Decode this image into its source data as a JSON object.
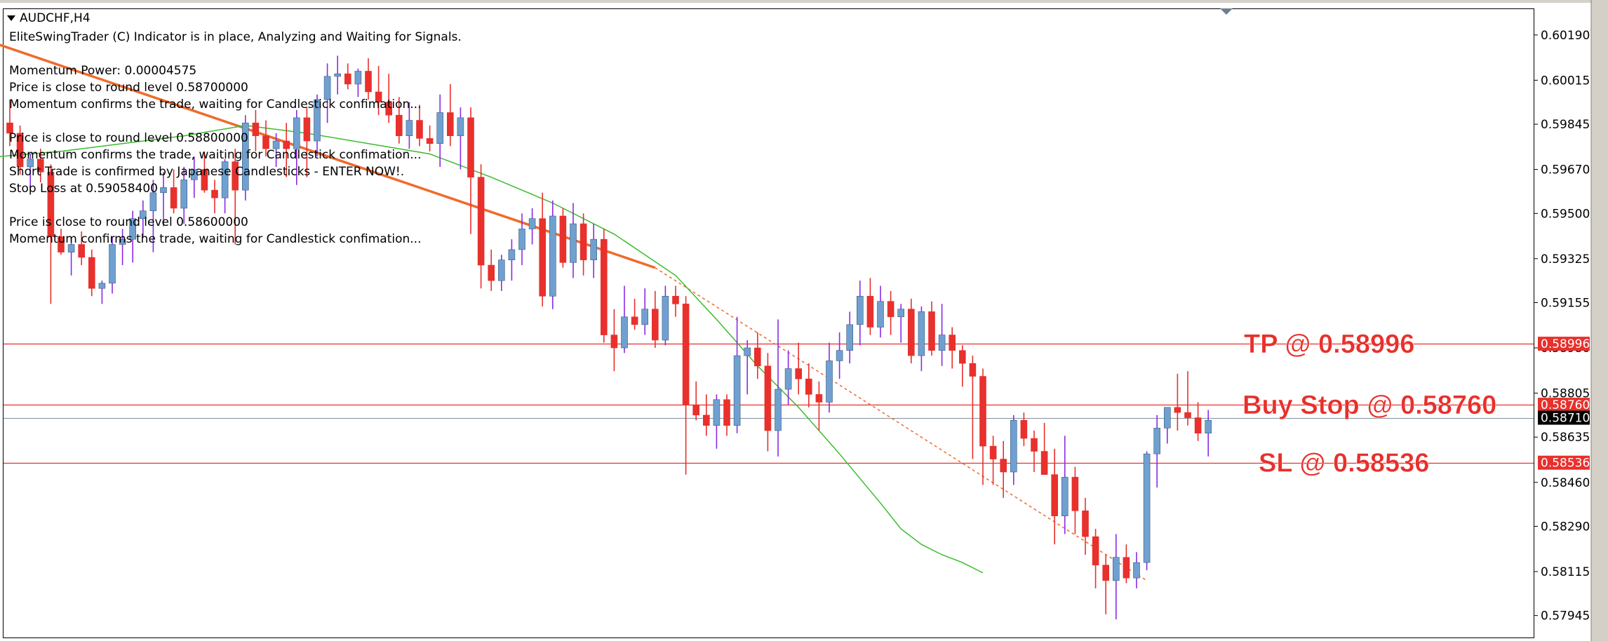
{
  "chart_title": "AUDCHF,H4",
  "info_lines": [
    "EliteSwingTrader (C) Indicator is in place, Analyzing and Waiting for Signals.",
    "",
    "Momentum Power: 0.00004575",
    "Price is close to round level 0.58700000",
    "Momentum confirms the trade, waiting for Candlestick confimation...",
    "",
    "Price is close to round level 0.58800000",
    "Momentum confirms the trade, waiting for Candlestick confimation...",
    "Short Trade is confirmed by Japanese Candlesticks - ENTER NOW!.",
    "Stop Loss at 0.59058400",
    "",
    "Price is close to round level 0.58600000",
    "Momentum confirms the trade, waiting for Candlestick confimation..."
  ],
  "colors": {
    "bull_body": "#6fa0d0",
    "bear_body": "#e8302c",
    "bull_wick": "#8a2be2",
    "bear_wick": "#e8302c",
    "level_line": "#e8302c",
    "current_price_line": "#8090a0",
    "moving_average": "#3cbb2e",
    "trendline": "#f06a2a",
    "price_tag_red": "#e8302c",
    "price_tag_black": "#000000",
    "frame": "#000000",
    "window_bg": "#d4d0c8"
  },
  "chart_data": {
    "type": "candlestick",
    "symbol": "AUDCHF",
    "timeframe": "H4",
    "ylim": [
      0.5786,
      0.6029
    ],
    "y_ticks": [
      "0.60190",
      "0.60015",
      "0.59845",
      "0.59670",
      "0.59500",
      "0.59325",
      "0.59155",
      "0.58980",
      "0.58805",
      "0.58635",
      "0.58460",
      "0.58290",
      "0.58115",
      "0.57945"
    ],
    "price_levels": [
      {
        "name": "tp",
        "price": 0.58996,
        "tag": "0.58996",
        "label": "TP @ 0.58996"
      },
      {
        "name": "buy-stop",
        "price": 0.5876,
        "tag": "0.58760",
        "label": "Buy Stop @ 0.58760"
      },
      {
        "name": "sl",
        "price": 0.58536,
        "tag": "0.58536",
        "label": "SL @ 0.58536"
      }
    ],
    "current_price": {
      "price": 0.5871,
      "tag": "0.58710"
    },
    "trendline": {
      "solid_from": {
        "bar": -12,
        "price": 0.603
      },
      "solid_to": {
        "bar": 63,
        "price": 0.5929
      },
      "dotted_to": {
        "bar": 111,
        "price": 0.5808
      }
    },
    "moving_average": [
      [
        -1,
        0.5972
      ],
      [
        5,
        0.5974
      ],
      [
        11,
        0.5977
      ],
      [
        17,
        0.598
      ],
      [
        23,
        0.5984
      ],
      [
        29,
        0.5981
      ],
      [
        35,
        0.5977
      ],
      [
        41,
        0.5973
      ],
      [
        47,
        0.5964
      ],
      [
        53,
        0.5954
      ],
      [
        59,
        0.5942
      ],
      [
        65,
        0.5926
      ],
      [
        69,
        0.5909
      ],
      [
        73,
        0.5891
      ],
      [
        77,
        0.5875
      ],
      [
        81,
        0.5857
      ],
      [
        85,
        0.5838
      ],
      [
        87,
        0.5828
      ],
      [
        88,
        0.5825
      ],
      [
        89,
        0.5822
      ],
      [
        91,
        0.5818
      ],
      [
        93,
        0.5815
      ],
      [
        95,
        0.5811
      ]
    ],
    "candles": [
      {
        "o": 0.5985,
        "h": 0.5994,
        "l": 0.5976,
        "c": 0.5981
      },
      {
        "o": 0.5981,
        "h": 0.5984,
        "l": 0.5965,
        "c": 0.5968
      },
      {
        "o": 0.5968,
        "h": 0.5973,
        "l": 0.5959,
        "c": 0.5971
      },
      {
        "o": 0.5971,
        "h": 0.5975,
        "l": 0.5962,
        "c": 0.5966
      },
      {
        "o": 0.5966,
        "h": 0.5969,
        "l": 0.5915,
        "c": 0.5941
      },
      {
        "o": 0.5941,
        "h": 0.5944,
        "l": 0.5934,
        "c": 0.5935
      },
      {
        "o": 0.5935,
        "h": 0.5941,
        "l": 0.5926,
        "c": 0.5938
      },
      {
        "o": 0.5938,
        "h": 0.5943,
        "l": 0.593,
        "c": 0.5933
      },
      {
        "o": 0.5933,
        "h": 0.5936,
        "l": 0.5918,
        "c": 0.5921
      },
      {
        "o": 0.5921,
        "h": 0.5924,
        "l": 0.5915,
        "c": 0.5923
      },
      {
        "o": 0.5923,
        "h": 0.5941,
        "l": 0.5919,
        "c": 0.5938
      },
      {
        "o": 0.5938,
        "h": 0.5944,
        "l": 0.593,
        "c": 0.594
      },
      {
        "o": 0.594,
        "h": 0.5951,
        "l": 0.5931,
        "c": 0.5948
      },
      {
        "o": 0.5948,
        "h": 0.5955,
        "l": 0.5941,
        "c": 0.5951
      },
      {
        "o": 0.5951,
        "h": 0.5963,
        "l": 0.5935,
        "c": 0.5958
      },
      {
        "o": 0.5958,
        "h": 0.5966,
        "l": 0.5945,
        "c": 0.596
      },
      {
        "o": 0.596,
        "h": 0.5967,
        "l": 0.595,
        "c": 0.5952
      },
      {
        "o": 0.5952,
        "h": 0.5968,
        "l": 0.5946,
        "c": 0.5963
      },
      {
        "o": 0.5963,
        "h": 0.5972,
        "l": 0.5956,
        "c": 0.5967
      },
      {
        "o": 0.5967,
        "h": 0.5974,
        "l": 0.5958,
        "c": 0.5959
      },
      {
        "o": 0.5959,
        "h": 0.5963,
        "l": 0.595,
        "c": 0.5956
      },
      {
        "o": 0.5956,
        "h": 0.5971,
        "l": 0.595,
        "c": 0.597
      },
      {
        "o": 0.597,
        "h": 0.5975,
        "l": 0.5938,
        "c": 0.5959
      },
      {
        "o": 0.5959,
        "h": 0.5988,
        "l": 0.5955,
        "c": 0.5985
      },
      {
        "o": 0.5985,
        "h": 0.599,
        "l": 0.5974,
        "c": 0.598
      },
      {
        "o": 0.598,
        "h": 0.5986,
        "l": 0.5972,
        "c": 0.5975
      },
      {
        "o": 0.5975,
        "h": 0.5981,
        "l": 0.5968,
        "c": 0.5978
      },
      {
        "o": 0.5978,
        "h": 0.5985,
        "l": 0.5964,
        "c": 0.5975
      },
      {
        "o": 0.5975,
        "h": 0.599,
        "l": 0.5961,
        "c": 0.5987
      },
      {
        "o": 0.5987,
        "h": 0.5991,
        "l": 0.5964,
        "c": 0.5978
      },
      {
        "o": 0.5978,
        "h": 0.5996,
        "l": 0.5972,
        "c": 0.5994
      },
      {
        "o": 0.5994,
        "h": 0.6008,
        "l": 0.5985,
        "c": 0.6003
      },
      {
        "o": 0.6003,
        "h": 0.6011,
        "l": 0.5996,
        "c": 0.6004
      },
      {
        "o": 0.6004,
        "h": 0.6008,
        "l": 0.5998,
        "c": 0.6
      },
      {
        "o": 0.6,
        "h": 0.6006,
        "l": 0.5995,
        "c": 0.6005
      },
      {
        "o": 0.6005,
        "h": 0.601,
        "l": 0.5994,
        "c": 0.5997
      },
      {
        "o": 0.5997,
        "h": 0.6007,
        "l": 0.5988,
        "c": 0.5993
      },
      {
        "o": 0.5993,
        "h": 0.6004,
        "l": 0.5985,
        "c": 0.5988
      },
      {
        "o": 0.5988,
        "h": 0.5995,
        "l": 0.5977,
        "c": 0.598
      },
      {
        "o": 0.598,
        "h": 0.5993,
        "l": 0.5975,
        "c": 0.5986
      },
      {
        "o": 0.5986,
        "h": 0.5992,
        "l": 0.5976,
        "c": 0.5979
      },
      {
        "o": 0.5979,
        "h": 0.5984,
        "l": 0.5974,
        "c": 0.5977
      },
      {
        "o": 0.5977,
        "h": 0.5996,
        "l": 0.5968,
        "c": 0.5989
      },
      {
        "o": 0.5989,
        "h": 0.6,
        "l": 0.5976,
        "c": 0.598
      },
      {
        "o": 0.598,
        "h": 0.5991,
        "l": 0.5967,
        "c": 0.5987
      },
      {
        "o": 0.5987,
        "h": 0.5991,
        "l": 0.5942,
        "c": 0.5964
      },
      {
        "o": 0.5964,
        "h": 0.5969,
        "l": 0.5921,
        "c": 0.593
      },
      {
        "o": 0.593,
        "h": 0.5936,
        "l": 0.592,
        "c": 0.5924
      },
      {
        "o": 0.5924,
        "h": 0.5934,
        "l": 0.592,
        "c": 0.5932
      },
      {
        "o": 0.5932,
        "h": 0.594,
        "l": 0.5924,
        "c": 0.5936
      },
      {
        "o": 0.5936,
        "h": 0.595,
        "l": 0.593,
        "c": 0.5944
      },
      {
        "o": 0.5944,
        "h": 0.5952,
        "l": 0.5938,
        "c": 0.5948
      },
      {
        "o": 0.5948,
        "h": 0.5958,
        "l": 0.5914,
        "c": 0.5918
      },
      {
        "o": 0.5918,
        "h": 0.5955,
        "l": 0.5913,
        "c": 0.5949
      },
      {
        "o": 0.5949,
        "h": 0.5952,
        "l": 0.5929,
        "c": 0.5931
      },
      {
        "o": 0.5931,
        "h": 0.5954,
        "l": 0.5925,
        "c": 0.5946
      },
      {
        "o": 0.5946,
        "h": 0.595,
        "l": 0.5926,
        "c": 0.5932
      },
      {
        "o": 0.5932,
        "h": 0.5946,
        "l": 0.5925,
        "c": 0.594
      },
      {
        "o": 0.594,
        "h": 0.5944,
        "l": 0.59,
        "c": 0.5903
      },
      {
        "o": 0.5903,
        "h": 0.5913,
        "l": 0.5889,
        "c": 0.5898
      },
      {
        "o": 0.5898,
        "h": 0.5922,
        "l": 0.5896,
        "c": 0.591
      },
      {
        "o": 0.591,
        "h": 0.5917,
        "l": 0.5905,
        "c": 0.5907
      },
      {
        "o": 0.5907,
        "h": 0.5921,
        "l": 0.5903,
        "c": 0.5913
      },
      {
        "o": 0.5913,
        "h": 0.592,
        "l": 0.5898,
        "c": 0.5901
      },
      {
        "o": 0.5901,
        "h": 0.5922,
        "l": 0.5899,
        "c": 0.5918
      },
      {
        "o": 0.5918,
        "h": 0.5922,
        "l": 0.591,
        "c": 0.5915
      },
      {
        "o": 0.5915,
        "h": 0.5918,
        "l": 0.5849,
        "c": 0.5876
      },
      {
        "o": 0.5876,
        "h": 0.5885,
        "l": 0.587,
        "c": 0.5872
      },
      {
        "o": 0.5872,
        "h": 0.588,
        "l": 0.5864,
        "c": 0.5868
      },
      {
        "o": 0.5868,
        "h": 0.588,
        "l": 0.5859,
        "c": 0.5878
      },
      {
        "o": 0.5878,
        "h": 0.588,
        "l": 0.5864,
        "c": 0.5868
      },
      {
        "o": 0.5868,
        "h": 0.591,
        "l": 0.5865,
        "c": 0.5895
      },
      {
        "o": 0.5895,
        "h": 0.5901,
        "l": 0.588,
        "c": 0.5898
      },
      {
        "o": 0.5898,
        "h": 0.5904,
        "l": 0.5886,
        "c": 0.5891
      },
      {
        "o": 0.5891,
        "h": 0.5896,
        "l": 0.5858,
        "c": 0.5866
      },
      {
        "o": 0.5866,
        "h": 0.5909,
        "l": 0.5856,
        "c": 0.5882
      },
      {
        "o": 0.5882,
        "h": 0.5897,
        "l": 0.5876,
        "c": 0.589
      },
      {
        "o": 0.589,
        "h": 0.59,
        "l": 0.588,
        "c": 0.5886
      },
      {
        "o": 0.5886,
        "h": 0.5892,
        "l": 0.5875,
        "c": 0.588
      },
      {
        "o": 0.588,
        "h": 0.5885,
        "l": 0.5866,
        "c": 0.5877
      },
      {
        "o": 0.5877,
        "h": 0.59,
        "l": 0.5873,
        "c": 0.5893
      },
      {
        "o": 0.5893,
        "h": 0.5904,
        "l": 0.5886,
        "c": 0.5897
      },
      {
        "o": 0.5897,
        "h": 0.5912,
        "l": 0.5892,
        "c": 0.5907
      },
      {
        "o": 0.5907,
        "h": 0.5924,
        "l": 0.5899,
        "c": 0.5918
      },
      {
        "o": 0.5918,
        "h": 0.5925,
        "l": 0.5903,
        "c": 0.5906
      },
      {
        "o": 0.5906,
        "h": 0.5922,
        "l": 0.5902,
        "c": 0.5916
      },
      {
        "o": 0.5916,
        "h": 0.592,
        "l": 0.5903,
        "c": 0.591
      },
      {
        "o": 0.591,
        "h": 0.5915,
        "l": 0.59,
        "c": 0.5913
      },
      {
        "o": 0.5913,
        "h": 0.5917,
        "l": 0.5892,
        "c": 0.5895
      },
      {
        "o": 0.5895,
        "h": 0.5914,
        "l": 0.5889,
        "c": 0.5912
      },
      {
        "o": 0.5912,
        "h": 0.5916,
        "l": 0.5895,
        "c": 0.5897
      },
      {
        "o": 0.5897,
        "h": 0.5915,
        "l": 0.5891,
        "c": 0.5903
      },
      {
        "o": 0.5903,
        "h": 0.5906,
        "l": 0.589,
        "c": 0.5897
      },
      {
        "o": 0.5897,
        "h": 0.5899,
        "l": 0.5883,
        "c": 0.5892
      },
      {
        "o": 0.5892,
        "h": 0.5895,
        "l": 0.5855,
        "c": 0.5887
      },
      {
        "o": 0.5887,
        "h": 0.589,
        "l": 0.5845,
        "c": 0.586
      },
      {
        "o": 0.586,
        "h": 0.5864,
        "l": 0.5845,
        "c": 0.5855
      },
      {
        "o": 0.5855,
        "h": 0.5862,
        "l": 0.584,
        "c": 0.585
      },
      {
        "o": 0.585,
        "h": 0.5872,
        "l": 0.5845,
        "c": 0.587
      },
      {
        "o": 0.587,
        "h": 0.5873,
        "l": 0.586,
        "c": 0.5863
      },
      {
        "o": 0.5863,
        "h": 0.5866,
        "l": 0.585,
        "c": 0.5858
      },
      {
        "o": 0.5858,
        "h": 0.5869,
        "l": 0.5849,
        "c": 0.5849
      },
      {
        "o": 0.5849,
        "h": 0.5859,
        "l": 0.5822,
        "c": 0.5833
      },
      {
        "o": 0.5833,
        "h": 0.5864,
        "l": 0.5826,
        "c": 0.5848
      },
      {
        "o": 0.5848,
        "h": 0.5852,
        "l": 0.5826,
        "c": 0.5835
      },
      {
        "o": 0.5835,
        "h": 0.584,
        "l": 0.5818,
        "c": 0.5825
      },
      {
        "o": 0.5825,
        "h": 0.5828,
        "l": 0.5805,
        "c": 0.5814
      },
      {
        "o": 0.5814,
        "h": 0.5818,
        "l": 0.5795,
        "c": 0.5808
      },
      {
        "o": 0.5808,
        "h": 0.5826,
        "l": 0.5793,
        "c": 0.5817
      },
      {
        "o": 0.5817,
        "h": 0.5822,
        "l": 0.5807,
        "c": 0.5809
      },
      {
        "o": 0.5809,
        "h": 0.5819,
        "l": 0.5805,
        "c": 0.5815
      },
      {
        "o": 0.5815,
        "h": 0.5858,
        "l": 0.5812,
        "c": 0.5857
      },
      {
        "o": 0.5857,
        "h": 0.5872,
        "l": 0.5844,
        "c": 0.5867
      },
      {
        "o": 0.5867,
        "h": 0.5875,
        "l": 0.5861,
        "c": 0.5875
      },
      {
        "o": 0.5875,
        "h": 0.5888,
        "l": 0.5866,
        "c": 0.5873
      },
      {
        "o": 0.5873,
        "h": 0.5889,
        "l": 0.5868,
        "c": 0.5871
      },
      {
        "o": 0.5871,
        "h": 0.5877,
        "l": 0.5862,
        "c": 0.5865
      },
      {
        "o": 0.5865,
        "h": 0.5874,
        "l": 0.5856,
        "c": 0.587
      }
    ]
  }
}
